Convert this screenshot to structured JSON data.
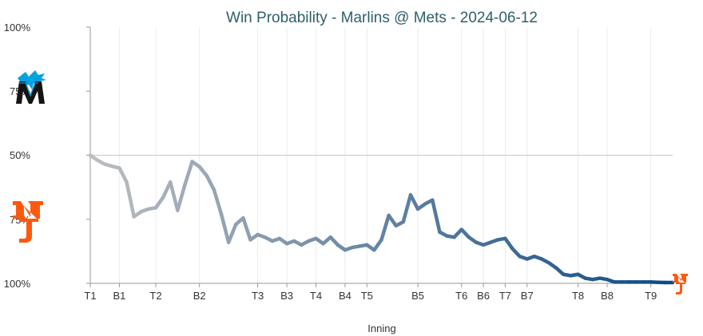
{
  "chart_data": {
    "type": "line",
    "title": "Win Probability - Marlins @ Mets - 2024-06-12",
    "xlabel": "Inning",
    "ylabel": "",
    "y_tick_labels": [
      "100%",
      "75%",
      "50%",
      "75%",
      "100%"
    ],
    "x_tick_labels": [
      "T1",
      "B1",
      "T2",
      "B2",
      "T3",
      "B3",
      "T4",
      "B4",
      "T5",
      "B5",
      "T6",
      "B6",
      "T7",
      "B7",
      "T8",
      "B8",
      "T9"
    ],
    "x_tick_events": [
      0,
      4,
      9,
      15,
      23,
      27,
      31,
      35,
      38,
      45,
      51,
      54,
      57,
      60,
      67,
      71,
      77
    ],
    "teams": [
      {
        "name": "Marlins",
        "side": "top",
        "icon": "marlins-logo-icon"
      },
      {
        "name": "Mets",
        "side": "bottom",
        "icon": "mets-logo-icon"
      }
    ],
    "grid": true,
    "midline_value": 0.5,
    "ylim": [
      0,
      1
    ],
    "series": [
      {
        "values": [
          0.5,
          0.48,
          0.465,
          0.457,
          0.45,
          0.395,
          0.26,
          0.28,
          0.29,
          0.295,
          0.335,
          0.395,
          0.285,
          0.385,
          0.475,
          0.455,
          0.42,
          0.365,
          0.27,
          0.16,
          0.23,
          0.255,
          0.17,
          0.19,
          0.18,
          0.165,
          0.175,
          0.155,
          0.165,
          0.15,
          0.165,
          0.175,
          0.155,
          0.18,
          0.15,
          0.13,
          0.14,
          0.145,
          0.15,
          0.13,
          0.17,
          0.265,
          0.225,
          0.24,
          0.345,
          0.29,
          0.31,
          0.325,
          0.2,
          0.185,
          0.18,
          0.21,
          0.18,
          0.16,
          0.15,
          0.16,
          0.17,
          0.175,
          0.135,
          0.105,
          0.095,
          0.105,
          0.095,
          0.08,
          0.06,
          0.035,
          0.03,
          0.035,
          0.02,
          0.015,
          0.02,
          0.015,
          0.005,
          0.005,
          0.005,
          0.005,
          0.005,
          0.005,
          0.004,
          0.003,
          0.003
        ]
      }
    ],
    "colors": {
      "line_start": "#bdbec1",
      "line_end": "#0c4a86",
      "title": "#2f5f6a",
      "marlins_blue": "#00a3e0",
      "mets_orange": "#ff5910",
      "axis": "#9a9a9a",
      "grid": "#ececec"
    }
  }
}
